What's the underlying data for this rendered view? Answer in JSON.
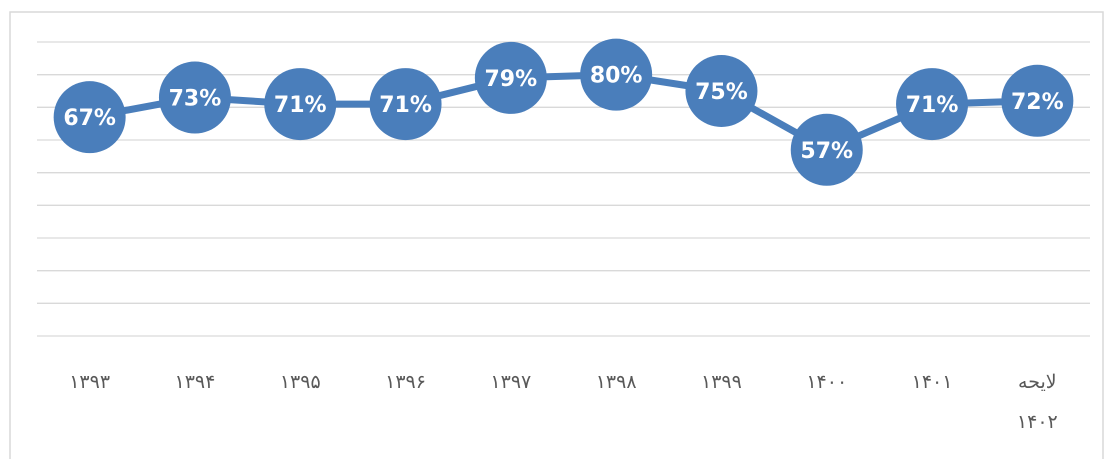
{
  "chart_data": {
    "type": "line",
    "categories": [
      "۱۳۹۳",
      "۱۳۹۴",
      "۱۳۹۵",
      "۱۳۹۶",
      "۱۳۹۷",
      "۱۳۹۸",
      "۱۳۹۹",
      "۱۴۰۰",
      "۱۴۰۱",
      "لایحه ۱۴۰۲"
    ],
    "series": [
      {
        "color": "#4a7ebb",
        "values": [
          67,
          73,
          71,
          71,
          79,
          80,
          75,
          57,
          71,
          72
        ],
        "value_labels": [
          "67%",
          "73%",
          "71%",
          "71%",
          "79%",
          "80%",
          "75%",
          "57%",
          "71%",
          "72%"
        ]
      }
    ],
    "ylim": [
      0,
      90
    ],
    "yticks": [
      0,
      10,
      20,
      30,
      40,
      50,
      60,
      70,
      80,
      90
    ],
    "grid": true
  }
}
